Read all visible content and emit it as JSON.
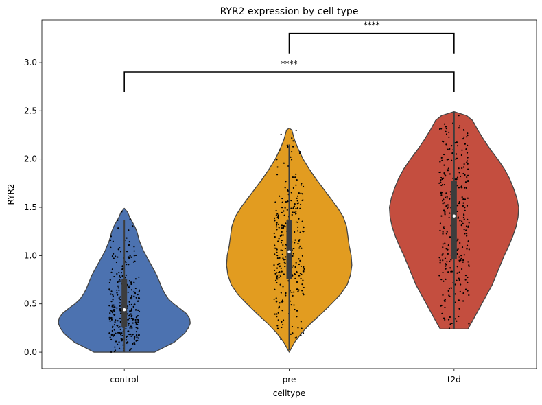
{
  "chart_data": {
    "type": "violin",
    "title": "RYR2 expression by cell type",
    "xlabel": "celltype",
    "ylabel": "RYR2",
    "categories": [
      "control",
      "pre",
      "t2d"
    ],
    "ylim": [
      -0.17,
      3.44
    ],
    "yticks": [
      0.0,
      0.5,
      1.0,
      1.5,
      2.0,
      2.5,
      3.0
    ],
    "ytick_labels": [
      "0.0",
      "0.5",
      "1.0",
      "1.5",
      "2.0",
      "2.5",
      "3.0"
    ],
    "grid": false,
    "series": [
      {
        "category": "control",
        "color": "#4c72b0",
        "min": 0.0,
        "max": 1.49,
        "q1": 0.26,
        "median": 0.44,
        "q3": 0.76,
        "whisker_low": 0.0,
        "whisker_high": 1.37,
        "density": [
          [
            0.0,
            0.46
          ],
          [
            0.05,
            0.6
          ],
          [
            0.1,
            0.75
          ],
          [
            0.15,
            0.84
          ],
          [
            0.2,
            0.92
          ],
          [
            0.25,
            0.97
          ],
          [
            0.3,
            1.0
          ],
          [
            0.35,
            0.99
          ],
          [
            0.4,
            0.94
          ],
          [
            0.45,
            0.85
          ],
          [
            0.5,
            0.75
          ],
          [
            0.55,
            0.67
          ],
          [
            0.6,
            0.62
          ],
          [
            0.65,
            0.58
          ],
          [
            0.7,
            0.55
          ],
          [
            0.75,
            0.52
          ],
          [
            0.8,
            0.49
          ],
          [
            0.85,
            0.45
          ],
          [
            0.9,
            0.41
          ],
          [
            0.95,
            0.37
          ],
          [
            1.0,
            0.33
          ],
          [
            1.05,
            0.29
          ],
          [
            1.1,
            0.26
          ],
          [
            1.15,
            0.23
          ],
          [
            1.2,
            0.21
          ],
          [
            1.25,
            0.19
          ],
          [
            1.3,
            0.16
          ],
          [
            1.35,
            0.12
          ],
          [
            1.4,
            0.08
          ],
          [
            1.45,
            0.05
          ],
          [
            1.49,
            0.0
          ]
        ]
      },
      {
        "category": "pre",
        "color": "#e29c20",
        "min": 0.0,
        "max": 2.32,
        "q1": 0.76,
        "median": 1.04,
        "q3": 1.37,
        "whisker_low": 0.02,
        "whisker_high": 2.15,
        "density": [
          [
            0.0,
            0.0
          ],
          [
            0.1,
            0.08
          ],
          [
            0.2,
            0.19
          ],
          [
            0.3,
            0.33
          ],
          [
            0.4,
            0.49
          ],
          [
            0.5,
            0.64
          ],
          [
            0.6,
            0.78
          ],
          [
            0.7,
            0.88
          ],
          [
            0.8,
            0.93
          ],
          [
            0.9,
            0.95
          ],
          [
            1.0,
            0.94
          ],
          [
            1.1,
            0.91
          ],
          [
            1.2,
            0.89
          ],
          [
            1.3,
            0.87
          ],
          [
            1.4,
            0.82
          ],
          [
            1.5,
            0.73
          ],
          [
            1.6,
            0.62
          ],
          [
            1.7,
            0.51
          ],
          [
            1.8,
            0.4
          ],
          [
            1.9,
            0.3
          ],
          [
            2.0,
            0.21
          ],
          [
            2.1,
            0.14
          ],
          [
            2.2,
            0.08
          ],
          [
            2.3,
            0.04
          ],
          [
            2.32,
            0.0
          ]
        ]
      },
      {
        "category": "t2d",
        "color": "#c44e3f",
        "min": 0.24,
        "max": 2.49,
        "q1": 0.96,
        "median": 1.41,
        "q3": 1.77,
        "whisker_low": 0.24,
        "whisker_high": 2.49,
        "density": [
          [
            0.24,
            0.21
          ],
          [
            0.3,
            0.26
          ],
          [
            0.4,
            0.34
          ],
          [
            0.5,
            0.42
          ],
          [
            0.6,
            0.5
          ],
          [
            0.7,
            0.58
          ],
          [
            0.8,
            0.64
          ],
          [
            0.9,
            0.7
          ],
          [
            1.0,
            0.76
          ],
          [
            1.1,
            0.83
          ],
          [
            1.2,
            0.89
          ],
          [
            1.3,
            0.94
          ],
          [
            1.4,
            0.97
          ],
          [
            1.5,
            0.98
          ],
          [
            1.6,
            0.95
          ],
          [
            1.7,
            0.9
          ],
          [
            1.8,
            0.84
          ],
          [
            1.9,
            0.76
          ],
          [
            2.0,
            0.66
          ],
          [
            2.1,
            0.55
          ],
          [
            2.2,
            0.45
          ],
          [
            2.3,
            0.36
          ],
          [
            2.4,
            0.28
          ],
          [
            2.45,
            0.19
          ],
          [
            2.49,
            0.0
          ]
        ]
      }
    ],
    "significance": [
      {
        "from": "control",
        "to": "t2d",
        "y": 2.9,
        "label": "****"
      },
      {
        "from": "pre",
        "to": "t2d",
        "y": 3.3,
        "label": "****"
      }
    ]
  }
}
